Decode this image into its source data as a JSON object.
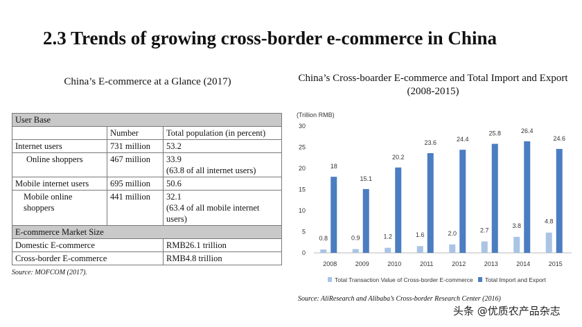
{
  "page_title": "2.3 Trends of growing cross-border e-commerce in China",
  "table": {
    "heading": "China’s E-commerce at a Glance (2017)",
    "user_base_label": "User Base",
    "col_number": "Number",
    "col_total": "Total population (in percent)",
    "rows": [
      {
        "label": "Internet users",
        "number": "731 million",
        "pct": "53.2",
        "note": ""
      },
      {
        "label": "Online shoppers",
        "number": "467 million",
        "pct": "33.9",
        "note": "(63.8 of all internet users)"
      },
      {
        "label": "Mobile internet users",
        "number": "695 million",
        "pct": "50.6",
        "note": ""
      },
      {
        "label": "Mobile online shoppers",
        "number": "441 million",
        "pct": "32.1",
        "note": "(63.4  of all mobile internet users)"
      }
    ],
    "market_label": "E-commerce Market Size",
    "market_rows": [
      {
        "label": "Domestic E-commerce",
        "value": "RMB26.1 trillion"
      },
      {
        "label": "Cross-border E-commerce",
        "value": "RMB4.8 trillion"
      }
    ],
    "source": "Source: MOFCOM (2017)."
  },
  "chart_data": {
    "type": "bar",
    "title": "China’s Cross-boarder E-commerce and Total Import and Export (2008-2015)",
    "ylabel": "(Trillion RMB)",
    "categories": [
      "2008",
      "2009",
      "2010",
      "2011",
      "2012",
      "2013",
      "2014",
      "2015"
    ],
    "ylim": [
      0,
      30
    ],
    "yticks": [
      0,
      5,
      10,
      15,
      20,
      25,
      30
    ],
    "series": [
      {
        "name": "Total Transaction Value of Cross-border E-commerce",
        "color": "#a9c4e4",
        "values": [
          0.8,
          0.9,
          1.2,
          1.6,
          2.0,
          2.7,
          3.8,
          4.8
        ]
      },
      {
        "name": "Total Import and Export",
        "color": "#4b7dc1",
        "values": [
          18,
          15.1,
          20.2,
          23.6,
          24.4,
          25.8,
          26.4,
          24.6
        ]
      }
    ],
    "legend": "bottom",
    "grid": false,
    "source": "Source: AliResearch and Alibaba’s Cross-border Research Center (2016)"
  },
  "watermark": "头条 @优质农产品杂志"
}
